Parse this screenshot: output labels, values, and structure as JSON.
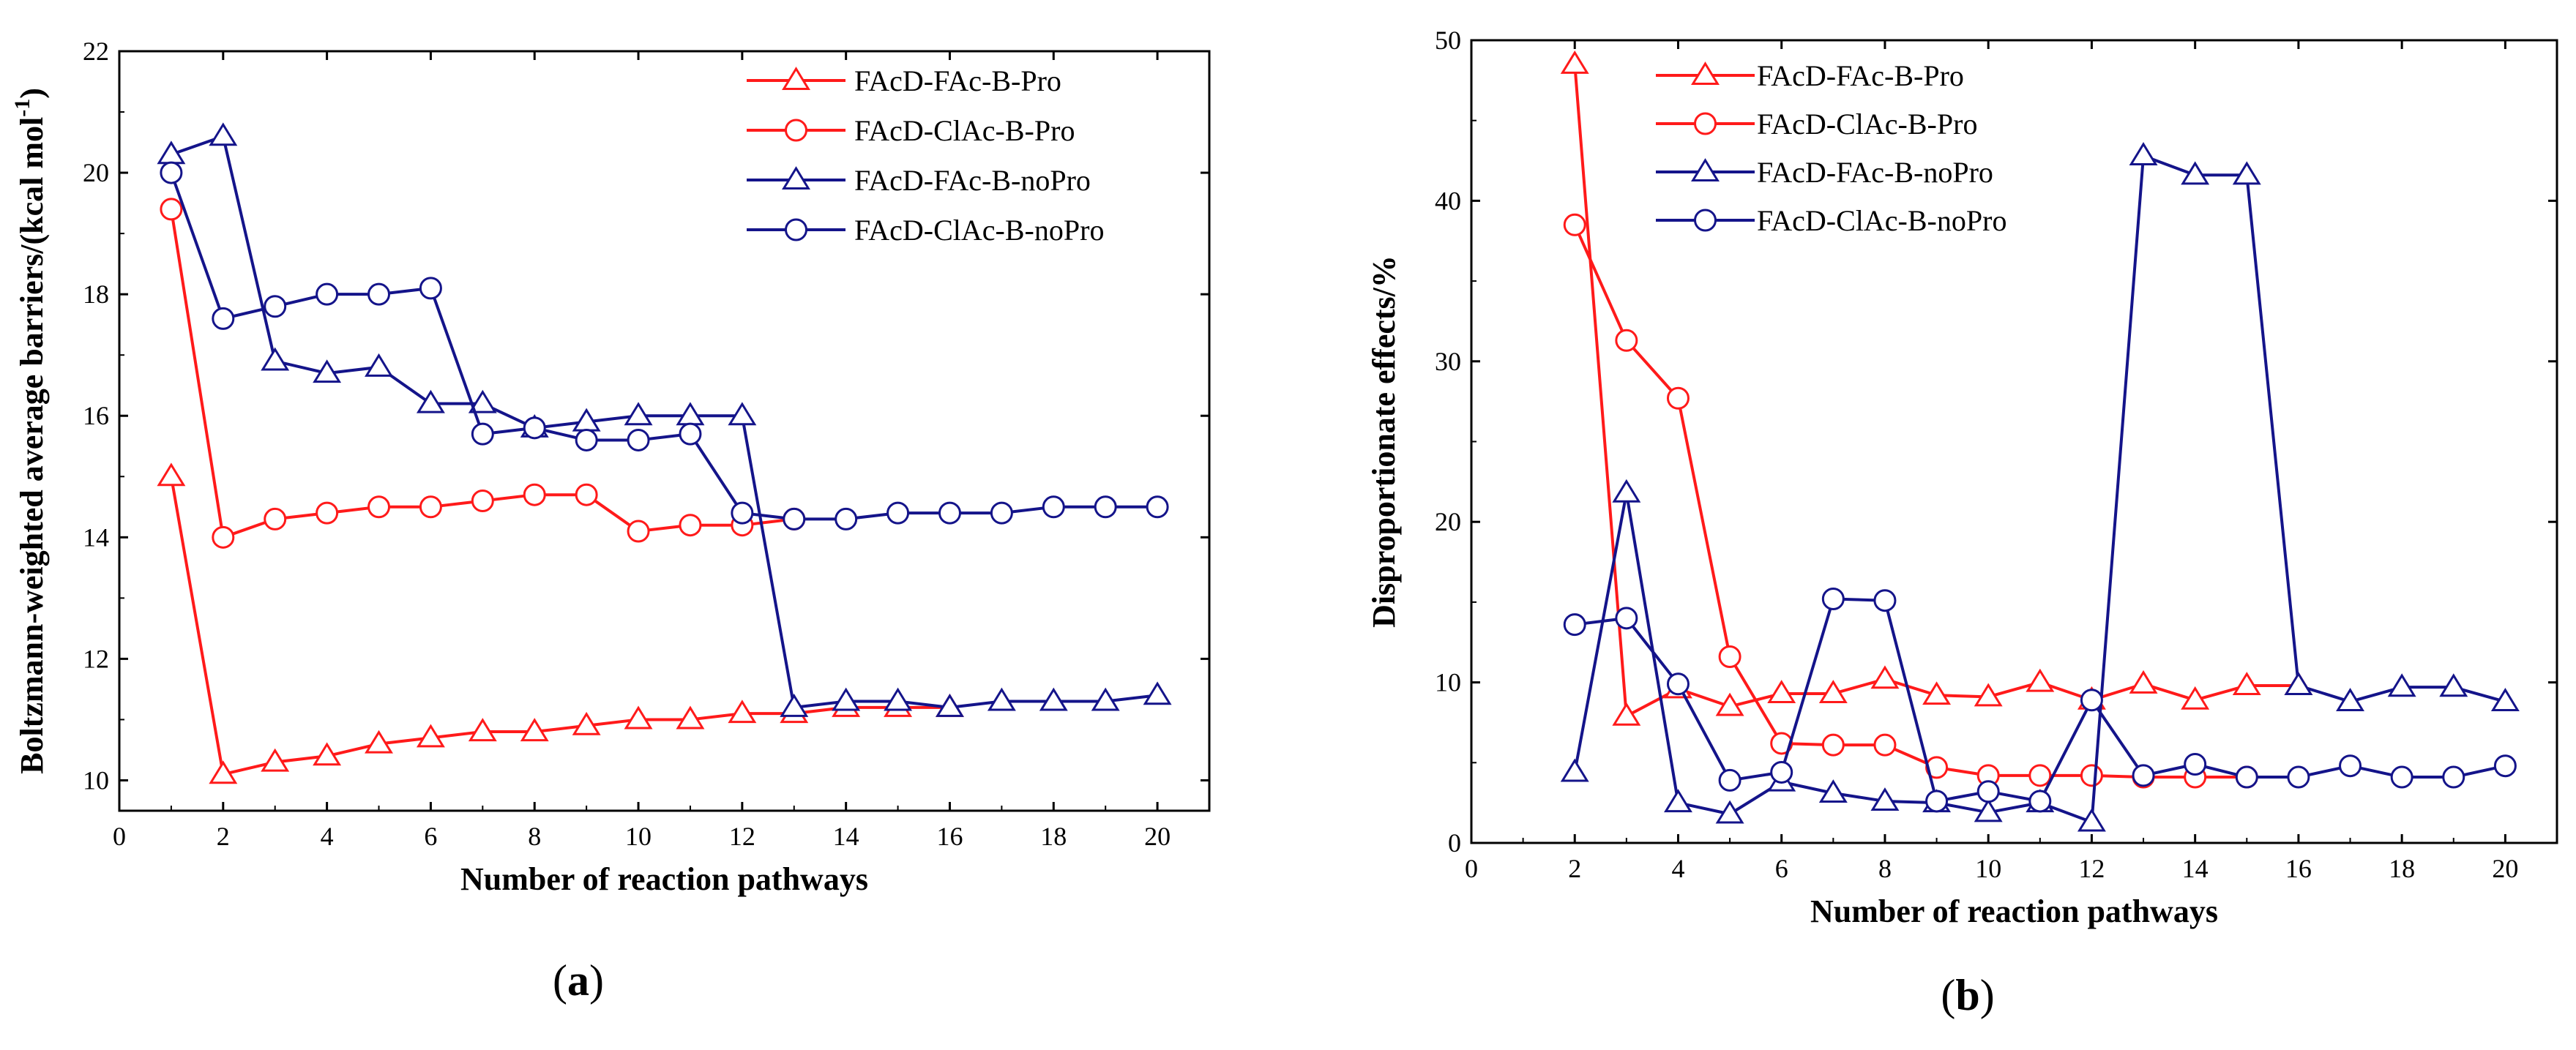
{
  "colors": {
    "red": "#ff1a1a",
    "navy": "#14148a",
    "axis": "#000000"
  },
  "chart_data": [
    {
      "panel_label": "a",
      "type": "line",
      "xlabel": "Number of reaction pathways",
      "ylabel_main": "Boltzmann-weighted average barriers/(kcal mol",
      "ylabel_sup": "-1",
      "ylabel_tail": ")",
      "xlim": [
        0,
        21
      ],
      "ylim": [
        9.5,
        22
      ],
      "xticks": [
        0,
        2,
        4,
        6,
        8,
        10,
        12,
        14,
        16,
        18,
        20
      ],
      "yticks": [
        10,
        12,
        14,
        16,
        18,
        20,
        22
      ],
      "legend_position": "top-right",
      "series": [
        {
          "name": "FAcD-FAc-B-Pro",
          "color": "red",
          "marker": "triangle",
          "x": [
            1,
            2,
            3,
            4,
            5,
            6,
            7,
            8,
            9,
            10,
            11,
            12,
            13,
            14,
            15,
            16
          ],
          "y": [
            15.0,
            10.1,
            10.3,
            10.4,
            10.6,
            10.7,
            10.8,
            10.8,
            10.9,
            11.0,
            11.0,
            11.1,
            11.1,
            11.2,
            11.2,
            11.2
          ]
        },
        {
          "name": "FAcD-ClAc-B-Pro",
          "color": "red",
          "marker": "circle",
          "x": [
            1,
            2,
            3,
            4,
            5,
            6,
            7,
            8,
            9,
            10,
            11,
            12,
            13
          ],
          "y": [
            19.4,
            14.0,
            14.3,
            14.4,
            14.5,
            14.5,
            14.6,
            14.7,
            14.7,
            14.1,
            14.2,
            14.2,
            14.3
          ]
        },
        {
          "name": "FAcD-FAc-B-noPro",
          "color": "navy",
          "marker": "triangle",
          "x": [
            1,
            2,
            3,
            4,
            5,
            6,
            7,
            8,
            9,
            10,
            11,
            12,
            13,
            14,
            15,
            16,
            17,
            18,
            19,
            20
          ],
          "y": [
            20.3,
            20.6,
            16.9,
            16.7,
            16.8,
            16.2,
            16.2,
            15.8,
            15.9,
            16.0,
            16.0,
            16.0,
            11.2,
            11.3,
            11.3,
            11.2,
            11.3,
            11.3,
            11.3,
            11.4
          ]
        },
        {
          "name": "FAcD-ClAc-B-noPro",
          "color": "navy",
          "marker": "circle",
          "x": [
            1,
            2,
            3,
            4,
            5,
            6,
            7,
            8,
            9,
            10,
            11,
            12,
            13,
            14,
            15,
            16,
            17,
            18,
            19,
            20
          ],
          "y": [
            20.0,
            17.6,
            17.8,
            18.0,
            18.0,
            18.1,
            15.7,
            15.8,
            15.6,
            15.6,
            15.7,
            14.4,
            14.3,
            14.3,
            14.4,
            14.4,
            14.4,
            14.5,
            14.5,
            14.5
          ]
        }
      ]
    },
    {
      "panel_label": "b",
      "type": "line",
      "xlabel": "Number of reaction pathways",
      "ylabel_main": "Disproportionate effects/%",
      "ylabel_sup": "",
      "ylabel_tail": "",
      "xlim": [
        0,
        21
      ],
      "ylim": [
        0,
        50
      ],
      "xticks": [
        0,
        2,
        4,
        6,
        8,
        10,
        12,
        14,
        16,
        18,
        20
      ],
      "yticks": [
        0,
        10,
        20,
        30,
        40,
        50
      ],
      "legend_position": "top-left",
      "series": [
        {
          "name": "FAcD-FAc-B-Pro",
          "color": "red",
          "marker": "triangle",
          "x": [
            2,
            3,
            4,
            5,
            6,
            7,
            8,
            9,
            10,
            11,
            12,
            13,
            14,
            15,
            16
          ],
          "y": [
            48.5,
            7.9,
            9.6,
            8.5,
            9.3,
            9.3,
            10.2,
            9.2,
            9.1,
            10.0,
            8.9,
            9.9,
            8.9,
            9.8,
            9.8
          ]
        },
        {
          "name": "FAcD-ClAc-B-Pro",
          "color": "red",
          "marker": "circle",
          "x": [
            2,
            3,
            4,
            5,
            6,
            7,
            8,
            9,
            10,
            11,
            12,
            13,
            14,
            15
          ],
          "y": [
            38.5,
            31.3,
            27.7,
            11.6,
            6.2,
            6.1,
            6.1,
            4.7,
            4.2,
            4.2,
            4.2,
            4.1,
            4.1,
            4.1
          ]
        },
        {
          "name": "FAcD-FAc-B-noPro",
          "color": "navy",
          "marker": "triangle",
          "x": [
            2,
            3,
            4,
            5,
            6,
            7,
            8,
            9,
            10,
            11,
            12,
            13,
            14,
            15,
            16,
            17,
            18,
            19,
            20
          ],
          "y": [
            4.4,
            21.8,
            2.5,
            1.8,
            3.8,
            3.1,
            2.6,
            2.5,
            1.9,
            2.5,
            1.3,
            42.8,
            41.6,
            41.6,
            9.8,
            8.8,
            9.7,
            9.7,
            8.8
          ]
        },
        {
          "name": "FAcD-ClAc-B-noPro",
          "color": "navy",
          "marker": "circle",
          "x": [
            2,
            3,
            4,
            5,
            6,
            7,
            8,
            9,
            10,
            11,
            12,
            13,
            14,
            15,
            16,
            17,
            18,
            19,
            20
          ],
          "y": [
            13.6,
            14.0,
            9.9,
            3.9,
            4.4,
            15.2,
            15.1,
            2.6,
            3.2,
            2.6,
            8.9,
            4.2,
            4.9,
            4.1,
            4.1,
            4.8,
            4.1,
            4.1,
            4.8
          ]
        }
      ]
    }
  ]
}
